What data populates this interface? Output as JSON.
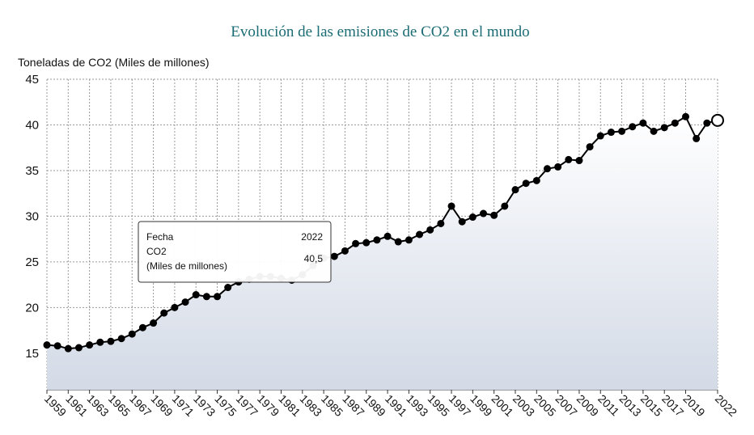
{
  "chart_data": {
    "type": "line",
    "title": "Evolución de las emisiones de CO2 en el mundo",
    "y_label": "Toneladas de CO2 (Miles de millones)",
    "x": [
      1959,
      1960,
      1961,
      1962,
      1963,
      1964,
      1965,
      1966,
      1967,
      1968,
      1969,
      1970,
      1971,
      1972,
      1973,
      1974,
      1975,
      1976,
      1977,
      1978,
      1979,
      1980,
      1981,
      1982,
      1983,
      1984,
      1985,
      1986,
      1987,
      1988,
      1989,
      1990,
      1991,
      1992,
      1993,
      1994,
      1995,
      1996,
      1997,
      1998,
      1999,
      2000,
      2001,
      2002,
      2003,
      2004,
      2005,
      2006,
      2007,
      2008,
      2009,
      2010,
      2011,
      2012,
      2013,
      2014,
      2015,
      2016,
      2017,
      2018,
      2019,
      2020,
      2021,
      2022
    ],
    "series": [
      {
        "name": "CO2",
        "color": "#000000",
        "values": [
          15.9,
          15.8,
          15.5,
          15.6,
          15.9,
          16.2,
          16.3,
          16.6,
          17.1,
          17.8,
          18.3,
          19.4,
          20.0,
          20.6,
          21.4,
          21.2,
          21.2,
          22.2,
          22.8,
          23.1,
          23.4,
          23.4,
          23.2,
          23.0,
          23.6,
          24.6,
          25.4,
          25.6,
          26.2,
          27.0,
          27.1,
          27.4,
          27.8,
          27.2,
          27.4,
          28.0,
          28.5,
          29.2,
          31.1,
          29.4,
          29.9,
          30.3,
          30.1,
          31.1,
          32.9,
          33.6,
          33.9,
          35.2,
          35.4,
          36.2,
          36.1,
          37.6,
          38.8,
          39.2,
          39.3,
          39.8,
          40.2,
          39.3,
          39.7,
          40.2,
          40.9,
          38.5,
          40.2,
          40.5
        ]
      }
    ],
    "xlim": [
      1959,
      2022
    ],
    "xticks": [
      1959,
      1961,
      1963,
      1965,
      1967,
      1969,
      1971,
      1973,
      1975,
      1977,
      1979,
      1981,
      1983,
      1985,
      1987,
      1989,
      1991,
      1993,
      1995,
      1997,
      1999,
      2001,
      2003,
      2005,
      2007,
      2009,
      2011,
      2013,
      2015,
      2017,
      2019,
      2022
    ],
    "ylim": [
      11,
      45
    ],
    "yticks": [
      15,
      20,
      25,
      30,
      35,
      40,
      45
    ],
    "grid": true,
    "tooltip": {
      "date_label": "Fecha",
      "date": "2022",
      "series_label": "CO2",
      "value": "40,5",
      "unit": "(Miles de millones)"
    }
  }
}
